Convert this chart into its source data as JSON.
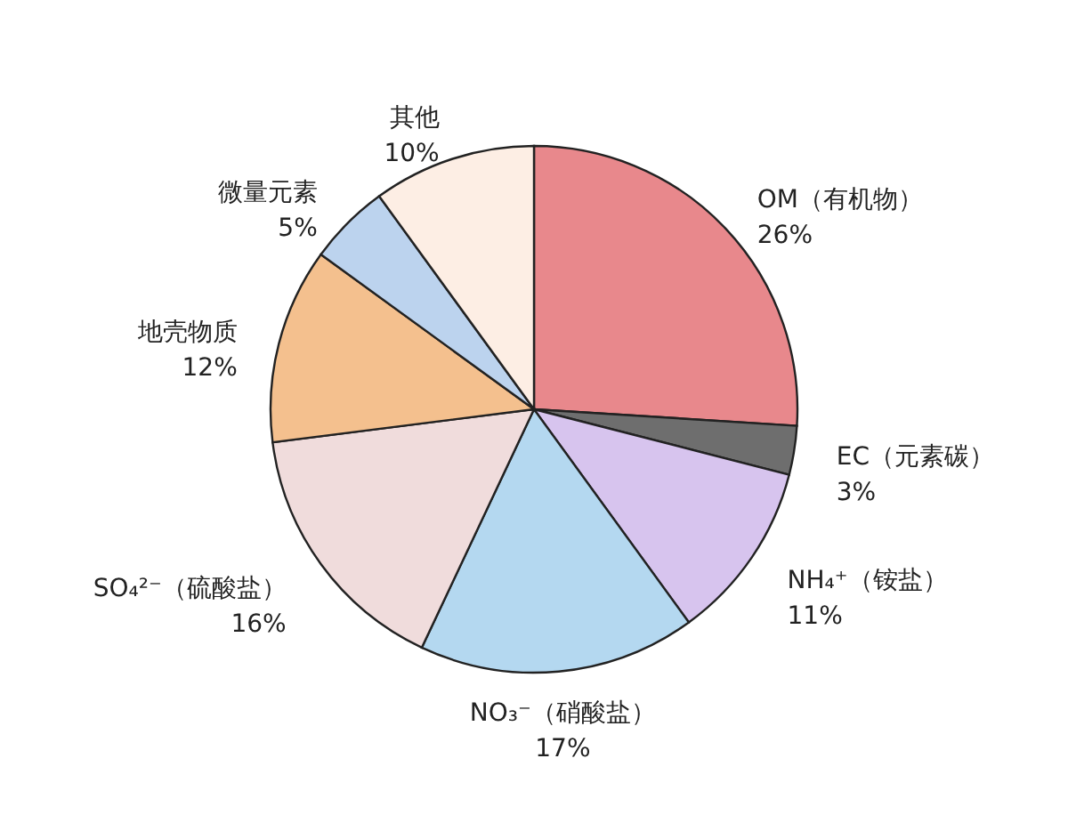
{
  "chart_data": {
    "type": "pie",
    "categories": [
      "OM（有机物）",
      "EC（元素碳）",
      "NH₄⁺（铵盐）",
      "NO₃⁻（硝酸盐）",
      "SO₄²⁻（硫酸盐）",
      "地壳物质",
      "微量元素",
      "其他"
    ],
    "values": [
      26,
      3,
      11,
      17,
      16,
      12,
      5,
      10
    ],
    "value_labels": [
      "26%",
      "3%",
      "11%",
      "17%",
      "16%",
      "12%",
      "5%",
      "10%"
    ],
    "colors": [
      "#e8888c",
      "#6e6e6e",
      "#d7c4ee",
      "#b4d8f0",
      "#f0dcdc",
      "#f4c08e",
      "#bcd3ee",
      "#fdeee4"
    ]
  }
}
